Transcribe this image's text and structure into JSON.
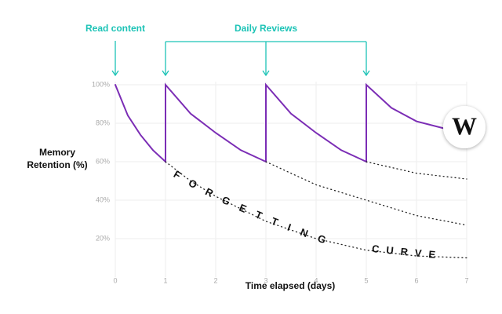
{
  "chart_data": {
    "type": "line",
    "xlabel": "Time elapsed (days)",
    "ylabel": "Memory Retention (%)",
    "xlim": [
      0,
      7
    ],
    "xticks": [
      0,
      1,
      2,
      3,
      4,
      5,
      6,
      7
    ],
    "ylim": [
      0,
      100
    ],
    "yticks": [
      {
        "value": 20,
        "label": "20%"
      },
      {
        "value": 40,
        "label": "40%"
      },
      {
        "value": 60,
        "label": "60%"
      },
      {
        "value": 80,
        "label": "80%"
      },
      {
        "value": 100,
        "label": "100%"
      }
    ],
    "grid": true,
    "series": [
      {
        "color": "#7b2db5",
        "line_style": "solid",
        "x": [
          0,
          0.25,
          0.5,
          0.75,
          1,
          1,
          1.5,
          2,
          2.5,
          3,
          3,
          3.5,
          4,
          4.5,
          5,
          5,
          5.5,
          6,
          6.6
        ],
        "values": [
          100,
          84,
          74,
          66,
          60,
          100,
          85,
          75,
          66,
          60,
          100,
          85,
          75,
          66,
          60,
          100,
          88,
          81,
          77
        ]
      },
      {
        "color": "#222222",
        "line_style": "dotted",
        "x": [
          1,
          1.5,
          2,
          3,
          4,
          5,
          6,
          7
        ],
        "values": [
          60,
          50,
          42,
          29,
          20,
          14,
          11,
          10
        ]
      },
      {
        "color": "#222222",
        "line_style": "dotted",
        "x": [
          3,
          4,
          5,
          6,
          7
        ],
        "values": [
          60,
          48,
          40,
          32,
          27
        ]
      },
      {
        "color": "#222222",
        "line_style": "dotted",
        "x": [
          5,
          6,
          7
        ],
        "values": [
          60,
          54,
          51
        ]
      }
    ],
    "annotations": [
      {
        "text": "Read content",
        "x": [
          0
        ]
      },
      {
        "text": "Daily Reviews",
        "x": [
          1,
          3,
          5
        ]
      }
    ],
    "curve_label": [
      "FORGETTING",
      "CURVE"
    ],
    "logo": "W"
  }
}
